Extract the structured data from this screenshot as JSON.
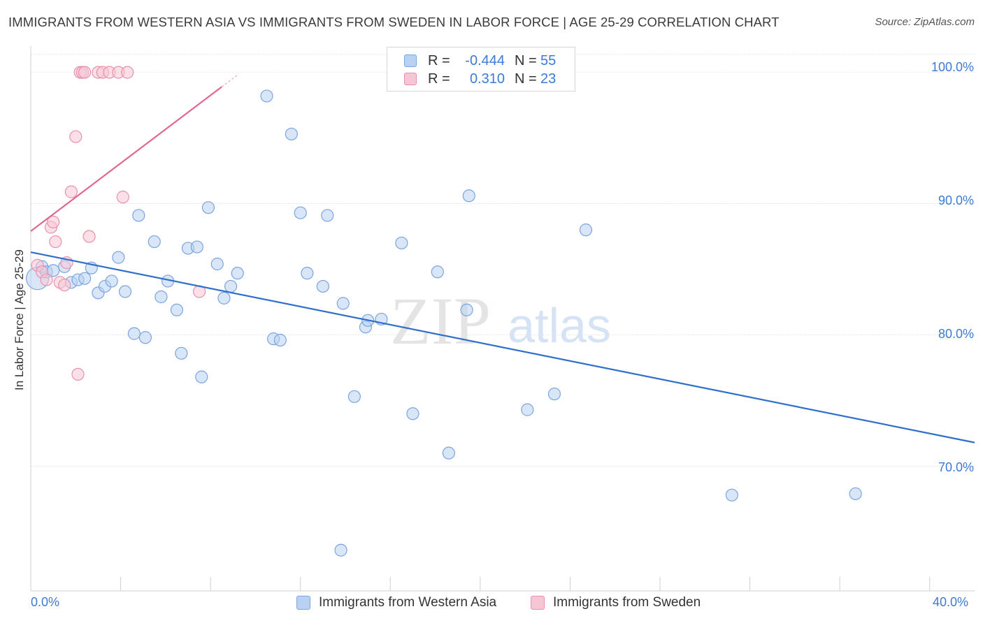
{
  "title": "IMMIGRANTS FROM WESTERN ASIA VS IMMIGRANTS FROM SWEDEN IN LABOR FORCE | AGE 25-29 CORRELATION CHART",
  "source": "Source: ZipAtlas.com",
  "watermark": {
    "zip": "ZIP",
    "atlas": "atlas"
  },
  "colors": {
    "blue_fill": "#b9d1f3",
    "blue_stroke": "#7aa5e0",
    "blue_line": "#2f6fcc",
    "pink_fill": "#f7c6d5",
    "pink_stroke": "#e891ad",
    "pink_line": "#e06890",
    "tick_label": "#3d7ad6",
    "grid": "#e6e6e6"
  },
  "legend": {
    "rows": [
      {
        "r_label": "R =",
        "r_value": "-0.444",
        "n_label": "N =",
        "n_value": "55"
      },
      {
        "r_label": "R =",
        "r_value": "0.310",
        "n_label": "N =",
        "n_value": "23"
      }
    ]
  },
  "chart_data": {
    "type": "scatter",
    "title": "IMMIGRANTS FROM WESTERN ASIA VS IMMIGRANTS FROM SWEDEN IN LABOR FORCE | AGE 25-29 CORRELATION CHART",
    "xlabel": "",
    "ylabel": "In Labor Force | Age 25-29",
    "xlim": [
      0,
      42
    ],
    "ylim": [
      60.5,
      102
    ],
    "x_tick_labels": [
      {
        "x": 0,
        "label": "0.0%"
      },
      {
        "x": 40,
        "label": "40.0%"
      }
    ],
    "y_tick_labels": [
      {
        "y": 100,
        "label": "100.0%"
      },
      {
        "y": 90,
        "label": "90.0%"
      },
      {
        "y": 80,
        "label": "80.0%"
      },
      {
        "y": 70,
        "label": "70.0%"
      }
    ],
    "grid": true,
    "legend_position": "bottom",
    "series": [
      {
        "name": "Immigrants from Western Asia",
        "color": "blue",
        "points": [
          [
            0.3,
            84.3
          ],
          [
            0.5,
            85.2
          ],
          [
            0.7,
            84.8
          ],
          [
            1.0,
            84.9
          ],
          [
            1.5,
            85.2
          ],
          [
            1.8,
            84.0
          ],
          [
            2.1,
            84.2
          ],
          [
            2.4,
            84.3
          ],
          [
            2.7,
            85.1
          ],
          [
            3.0,
            83.2
          ],
          [
            3.3,
            83.7
          ],
          [
            3.6,
            84.1
          ],
          [
            3.9,
            85.9
          ],
          [
            4.2,
            83.3
          ],
          [
            4.6,
            80.1
          ],
          [
            4.8,
            89.1
          ],
          [
            5.1,
            79.8
          ],
          [
            5.5,
            87.1
          ],
          [
            5.8,
            82.9
          ],
          [
            6.1,
            84.1
          ],
          [
            6.5,
            81.9
          ],
          [
            6.7,
            78.6
          ],
          [
            7.0,
            86.6
          ],
          [
            7.4,
            86.7
          ],
          [
            7.6,
            76.8
          ],
          [
            7.9,
            89.7
          ],
          [
            8.3,
            85.4
          ],
          [
            8.6,
            82.8
          ],
          [
            8.9,
            83.7
          ],
          [
            9.2,
            84.7
          ],
          [
            10.5,
            98.2
          ],
          [
            10.8,
            79.7
          ],
          [
            11.1,
            79.6
          ],
          [
            11.6,
            95.3
          ],
          [
            12.0,
            89.3
          ],
          [
            12.3,
            84.7
          ],
          [
            13.0,
            83.7
          ],
          [
            13.2,
            89.1
          ],
          [
            13.9,
            82.4
          ],
          [
            14.4,
            75.3
          ],
          [
            14.9,
            80.6
          ],
          [
            15.0,
            81.1
          ],
          [
            15.6,
            81.2
          ],
          [
            16.5,
            87.0
          ],
          [
            17.0,
            74.0
          ],
          [
            18.1,
            84.8
          ],
          [
            18.6,
            71.0
          ],
          [
            19.4,
            81.9
          ],
          [
            19.5,
            90.6
          ],
          [
            22.1,
            74.3
          ],
          [
            23.3,
            75.5
          ],
          [
            24.7,
            88.0
          ],
          [
            31.2,
            67.8
          ],
          [
            36.7,
            67.9
          ],
          [
            13.8,
            63.6
          ]
        ],
        "trend": {
          "x": [
            0,
            42
          ],
          "y": [
            86.3,
            71.8
          ]
        }
      },
      {
        "name": "Immigrants from Sweden",
        "color": "pink",
        "points": [
          [
            0.3,
            85.3
          ],
          [
            0.5,
            84.8
          ],
          [
            0.7,
            84.2
          ],
          [
            0.9,
            88.2
          ],
          [
            1.0,
            88.6
          ],
          [
            1.1,
            87.1
          ],
          [
            1.3,
            84.0
          ],
          [
            1.5,
            83.8
          ],
          [
            1.6,
            85.5
          ],
          [
            1.8,
            90.9
          ],
          [
            2.0,
            95.1
          ],
          [
            2.1,
            77.0
          ],
          [
            2.2,
            100.0
          ],
          [
            2.3,
            100.0
          ],
          [
            2.4,
            100.0
          ],
          [
            2.6,
            87.5
          ],
          [
            3.0,
            100.0
          ],
          [
            3.2,
            100.0
          ],
          [
            3.5,
            100.0
          ],
          [
            3.9,
            100.0
          ],
          [
            4.1,
            90.5
          ],
          [
            4.3,
            100.0
          ],
          [
            7.5,
            83.3
          ]
        ],
        "trend": {
          "x": [
            0,
            8.5
          ],
          "y": [
            87.9,
            98.9
          ]
        },
        "trend_dashed_to": {
          "x": 9.2,
          "y": 99.8
        }
      }
    ]
  },
  "bottom_legend": [
    "Immigrants from Western Asia",
    "Immigrants from Sweden"
  ]
}
